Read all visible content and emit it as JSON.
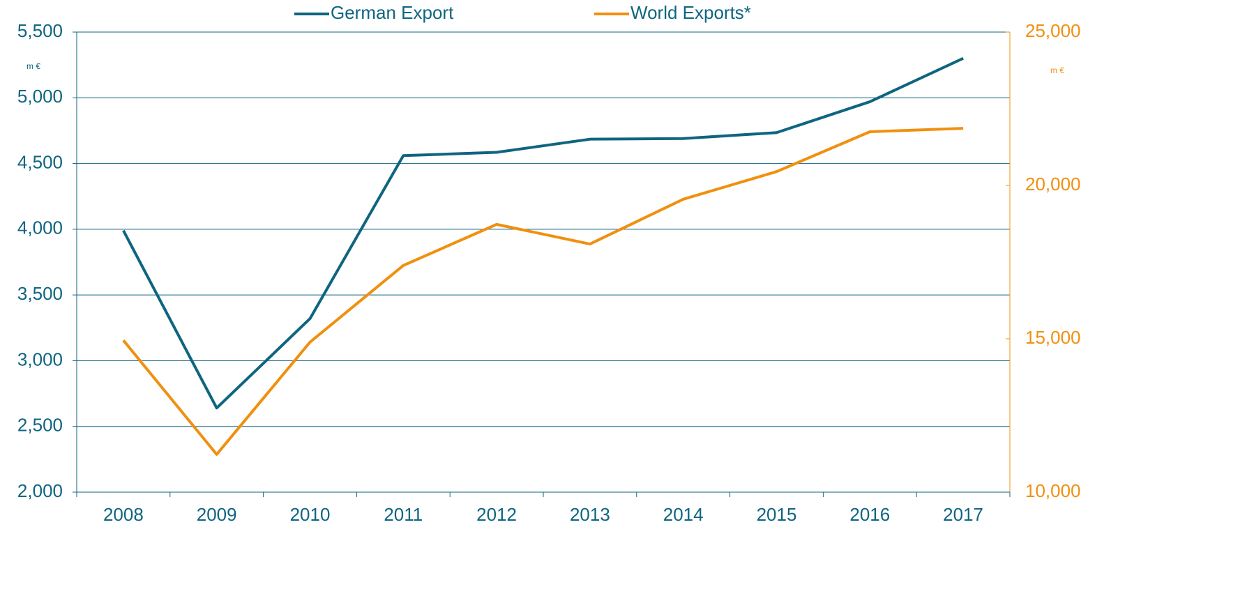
{
  "chart_data": {
    "type": "line",
    "categories": [
      "2008",
      "2009",
      "2010",
      "2011",
      "2012",
      "2013",
      "2014",
      "2015",
      "2016",
      "2017"
    ],
    "series": [
      {
        "name": "German Export",
        "color": "#0f6580",
        "values": [
          3990,
          2640,
          3320,
          4560,
          4585,
          4685,
          4690,
          4735,
          4970,
          5300
        ]
      },
      {
        "name": "World Exports*",
        "color": "#f0900f",
        "axis": "y2",
        "values": [
          14950,
          11230,
          14890,
          17390,
          18730,
          18090,
          19550,
          20450,
          21750,
          21860
        ]
      }
    ],
    "y_unit": "m €",
    "y2_unit": "m €",
    "ylim": [
      2000,
      5500
    ],
    "yticks": [
      {
        "value": 2000,
        "label": "2,000"
      },
      {
        "value": 2500,
        "label": "2,500"
      },
      {
        "value": 3000,
        "label": "3,000"
      },
      {
        "value": 3500,
        "label": "3,500"
      },
      {
        "value": 4000,
        "label": "4,000"
      },
      {
        "value": 4500,
        "label": "4,500"
      },
      {
        "value": 5000,
        "label": "5,000"
      },
      {
        "value": 5500,
        "label": "5,500"
      }
    ],
    "y2lim": [
      10000,
      25000
    ],
    "y2ticks": [
      {
        "value": 10000,
        "label": "10,000"
      },
      {
        "value": 15000,
        "label": "15,000"
      },
      {
        "value": 20000,
        "label": "20,000"
      },
      {
        "value": 25000,
        "label": "25,000"
      }
    ],
    "grid": true
  }
}
